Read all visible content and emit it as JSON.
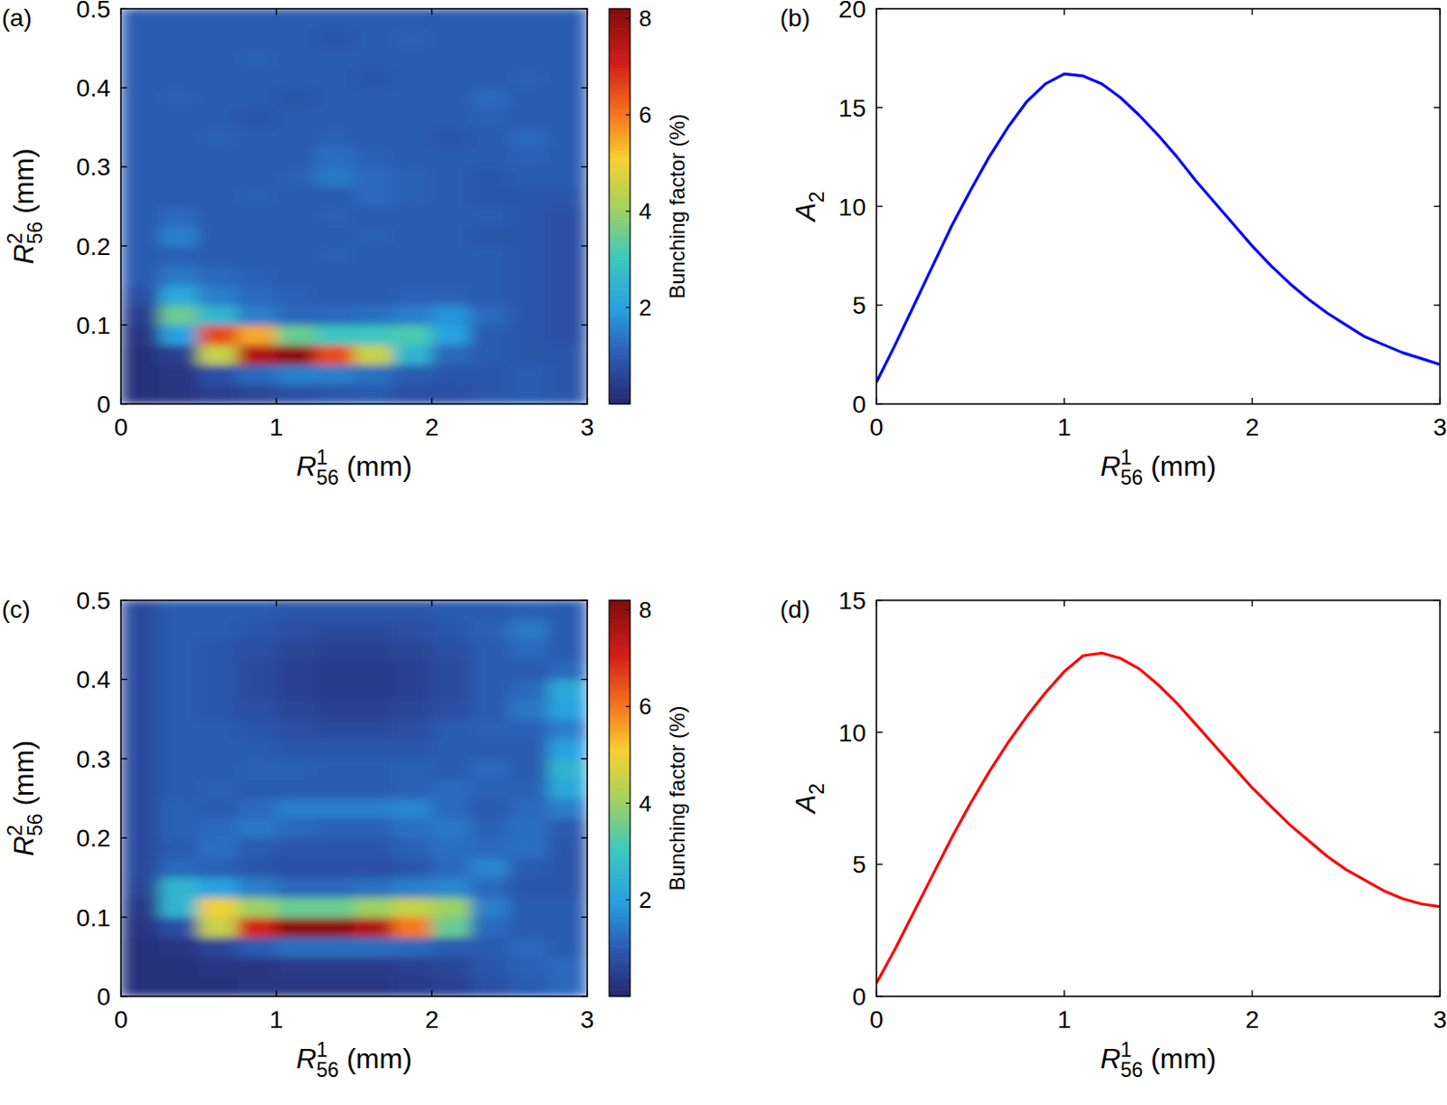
{
  "chart_data": [
    {
      "type": "heatmap",
      "panel_label": "(a)",
      "xlabel": {
        "base": "R",
        "sup": "1",
        "sub": "56",
        "rest": " (mm)"
      },
      "ylabel": {
        "base": "R",
        "sup": "2",
        "sub": "56",
        "rest": " (mm)"
      },
      "xlim": [
        0,
        3
      ],
      "ylim": [
        0,
        0.5
      ],
      "xticks": [
        0,
        1,
        2,
        3
      ],
      "yticks": [
        0,
        0.1,
        0.2,
        0.3,
        0.4,
        0.5
      ],
      "x": [
        0.125,
        0.375,
        0.625,
        0.875,
        1.125,
        1.375,
        1.625,
        1.875,
        2.125,
        2.375,
        2.625,
        2.875
      ],
      "y": [
        0.0125,
        0.0375,
        0.0625,
        0.0875,
        0.1125,
        0.1375,
        0.1625,
        0.1875,
        0.2125,
        0.2375,
        0.2625,
        0.2875,
        0.3125,
        0.3375,
        0.3625,
        0.3875,
        0.4125,
        0.4375,
        0.4625,
        0.4875
      ],
      "z": [
        [
          0.2,
          0.3,
          0.5,
          0.6,
          0.8,
          0.9,
          1,
          0.8,
          0.8,
          0.9,
          1,
          0.9
        ],
        [
          0.2,
          0.3,
          0.8,
          1.2,
          1.5,
          1.5,
          1.3,
          1.0,
          0.9,
          0.9,
          1,
          0.9
        ],
        [
          0.2,
          0.5,
          4.5,
          7.5,
          8.0,
          6.5,
          4.5,
          2.5,
          1.2,
          1,
          0.9,
          0.9
        ],
        [
          0.3,
          2.0,
          6.5,
          5.5,
          3.5,
          3.0,
          3.0,
          3.2,
          2.0,
          1,
          0.9,
          0.8
        ],
        [
          0.5,
          3.5,
          2.5,
          1.5,
          1.2,
          1.2,
          1.3,
          1.5,
          1.8,
          1.2,
          0.9,
          0.8
        ],
        [
          0.8,
          2.2,
          1.5,
          1.2,
          1.1,
          1,
          1,
          1.1,
          1.1,
          1,
          0.9,
          0.8
        ],
        [
          1,
          1.4,
          1.2,
          1.1,
          1,
          1,
          1,
          1,
          1,
          1,
          0.9,
          0.8
        ],
        [
          1,
          1.1,
          1,
          1,
          1,
          1.1,
          1,
          1,
          1,
          1,
          0.9,
          0.8
        ],
        [
          1,
          1.5,
          1,
          1,
          1,
          1,
          1.1,
          1,
          1,
          0.9,
          0.9,
          0.8
        ],
        [
          1,
          1.2,
          1,
          1,
          1,
          1.1,
          1,
          1,
          1,
          1,
          0.9,
          0.8
        ],
        [
          1,
          1,
          1,
          1.1,
          1,
          1,
          1.2,
          1.1,
          1,
          0.9,
          0.9,
          0.9
        ],
        [
          1,
          1,
          1,
          1,
          1.1,
          1.4,
          1.2,
          1.1,
          1,
          0.9,
          1,
          1
        ],
        [
          1,
          1,
          1,
          1,
          1,
          1.3,
          1.1,
          1,
          1,
          1,
          1.1,
          1
        ],
        [
          1,
          1,
          1.1,
          1,
          1,
          1.1,
          1,
          1,
          0.9,
          1,
          1.2,
          1
        ],
        [
          1,
          1,
          1,
          0.9,
          1,
          1,
          1,
          1,
          1,
          1.1,
          1,
          1
        ],
        [
          1,
          1.1,
          1,
          1,
          0.9,
          1,
          1,
          1,
          1,
          1.2,
          1,
          1
        ],
        [
          1,
          1,
          1,
          1,
          1,
          1,
          0.9,
          1,
          1,
          1,
          1.1,
          1
        ],
        [
          1,
          1,
          1,
          1.1,
          1,
          1,
          1,
          1,
          1,
          1,
          1,
          1
        ],
        [
          1,
          1,
          1,
          1,
          1,
          0.9,
          1,
          1.1,
          1,
          1,
          1,
          1
        ],
        [
          1,
          1,
          1,
          1,
          1,
          1,
          1,
          1,
          1,
          1,
          1,
          1
        ]
      ],
      "zlim": [
        0,
        8.2
      ],
      "zticks": [
        2,
        4,
        6,
        8
      ],
      "colorbar_label": "Bunching factor (%)"
    },
    {
      "type": "line",
      "panel_label": "(b)",
      "xlabel": {
        "base": "R",
        "sup": "1",
        "sub": "56",
        "rest": " (mm)"
      },
      "ylabel": {
        "base": "A",
        "sub": "2"
      },
      "xlim": [
        0,
        3
      ],
      "ylim": [
        0,
        20
      ],
      "xticks": [
        0,
        1,
        2,
        3
      ],
      "yticks": [
        0,
        5,
        10,
        15,
        20
      ],
      "color": "#0000ff",
      "x": [
        0,
        0.1,
        0.2,
        0.3,
        0.4,
        0.5,
        0.6,
        0.7,
        0.8,
        0.9,
        1.0,
        1.1,
        1.2,
        1.3,
        1.4,
        1.5,
        1.6,
        1.7,
        1.8,
        1.9,
        2.0,
        2.1,
        2.2,
        2.3,
        2.4,
        2.5,
        2.6,
        2.7,
        2.8,
        2.9,
        3.0
      ],
      "values": [
        1.1,
        3.0,
        5.0,
        7.0,
        9.0,
        10.8,
        12.5,
        14.0,
        15.3,
        16.2,
        16.7,
        16.6,
        16.2,
        15.5,
        14.6,
        13.6,
        12.5,
        11.3,
        10.2,
        9.1,
        8.0,
        7.0,
        6.1,
        5.3,
        4.6,
        4.0,
        3.4,
        3.0,
        2.6,
        2.3,
        2.0
      ]
    },
    {
      "type": "heatmap",
      "panel_label": "(c)",
      "xlabel": {
        "base": "R",
        "sup": "1",
        "sub": "56",
        "rest": " (mm)"
      },
      "ylabel": {
        "base": "R",
        "sup": "2",
        "sub": "56",
        "rest": " (mm)"
      },
      "xlim": [
        0,
        3
      ],
      "ylim": [
        0,
        0.5
      ],
      "xticks": [
        0,
        1,
        2,
        3
      ],
      "yticks": [
        0,
        0.1,
        0.2,
        0.3,
        0.4,
        0.5
      ],
      "x": [
        0.125,
        0.375,
        0.625,
        0.875,
        1.125,
        1.375,
        1.625,
        1.875,
        2.125,
        2.375,
        2.625,
        2.875
      ],
      "y": [
        0.0125,
        0.0375,
        0.0625,
        0.0875,
        0.1125,
        0.1375,
        0.1625,
        0.1875,
        0.2125,
        0.2375,
        0.2625,
        0.2875,
        0.3125,
        0.3375,
        0.3625,
        0.3875,
        0.4125,
        0.4375,
        0.4625,
        0.4875
      ],
      "z": [
        [
          0.2,
          0.2,
          0.2,
          0.3,
          0.3,
          0.3,
          0.3,
          0.4,
          0.5,
          0.8,
          1,
          1.2
        ],
        [
          0.2,
          0.2,
          0.3,
          0.3,
          0.4,
          0.4,
          0.4,
          0.5,
          0.6,
          0.9,
          1.1,
          1.2
        ],
        [
          0.2,
          0.3,
          0.6,
          1,
          1.3,
          1.3,
          1.3,
          1.2,
          1.0,
          1.0,
          1.2,
          1.0
        ],
        [
          0.3,
          0.8,
          4.5,
          7,
          8,
          8,
          7.5,
          6,
          3.5,
          1.2,
          1,
          1
        ],
        [
          0.4,
          2.5,
          5,
          4,
          3.5,
          3.5,
          4,
          4.5,
          4,
          1.5,
          1,
          1
        ],
        [
          0.6,
          2.5,
          2,
          1.5,
          1.2,
          1.2,
          1.3,
          1.5,
          1.6,
          1.2,
          0.9,
          0.9
        ],
        [
          0.7,
          1.2,
          1.1,
          0.9,
          0.8,
          0.8,
          0.8,
          0.9,
          1.2,
          1.6,
          1,
          0.9
        ],
        [
          0.7,
          1.0,
          1.3,
          1.0,
          0.9,
          0.9,
          0.9,
          1.1,
          1.3,
          1.2,
          1.3,
          0.9
        ],
        [
          0.7,
          1.1,
          1.2,
          1.4,
          1.2,
          1.1,
          1.1,
          1.3,
          1.4,
          1.1,
          1.3,
          1.0
        ],
        [
          0.7,
          1.1,
          1.0,
          1.2,
          1.5,
          1.5,
          1.5,
          1.6,
          1.2,
          1.0,
          1.2,
          1.5
        ],
        [
          0.7,
          1.0,
          1.1,
          1.0,
          1.0,
          1.0,
          1.0,
          1.1,
          1.2,
          1.1,
          1.1,
          2.2
        ],
        [
          0.7,
          1.0,
          1.0,
          1.1,
          1.1,
          1.0,
          1.0,
          1.1,
          1.0,
          1.2,
          1.0,
          2.5
        ],
        [
          0.7,
          1.0,
          1.0,
          1.0,
          0.9,
          0.9,
          0.9,
          0.9,
          1.0,
          1.0,
          1.0,
          2.0
        ],
        [
          0.7,
          1.0,
          1.0,
          0.9,
          0.8,
          0.7,
          0.7,
          0.8,
          1.0,
          1.1,
          1.1,
          1.5
        ],
        [
          0.7,
          1.0,
          0.9,
          0.8,
          0.6,
          0.5,
          0.5,
          0.6,
          0.8,
          1.0,
          1.4,
          2.0
        ],
        [
          0.7,
          1.0,
          0.9,
          0.7,
          0.5,
          0.4,
          0.4,
          0.5,
          0.7,
          1.0,
          1.2,
          2.2
        ],
        [
          0.7,
          1.0,
          0.9,
          0.7,
          0.5,
          0.4,
          0.4,
          0.5,
          0.7,
          1.0,
          1.0,
          1.2
        ],
        [
          0.7,
          1.0,
          0.9,
          0.8,
          0.6,
          0.5,
          0.5,
          0.6,
          0.8,
          1.0,
          1.2,
          1.0
        ],
        [
          0.7,
          1.0,
          1.0,
          0.9,
          0.8,
          0.7,
          0.7,
          0.8,
          0.9,
          1.1,
          1.4,
          1.0
        ],
        [
          0.7,
          1.0,
          1.0,
          1.0,
          0.9,
          0.9,
          0.9,
          0.9,
          1.0,
          1.0,
          1.1,
          1.0
        ]
      ],
      "zlim": [
        0,
        8.2
      ],
      "zticks": [
        2,
        4,
        6,
        8
      ],
      "colorbar_label": "Bunching factor (%)"
    },
    {
      "type": "line",
      "panel_label": "(d)",
      "xlabel": {
        "base": "R",
        "sup": "1",
        "sub": "56",
        "rest": " (mm)"
      },
      "ylabel": {
        "base": "A",
        "sub": "2"
      },
      "xlim": [
        0,
        3
      ],
      "ylim": [
        0,
        15
      ],
      "xticks": [
        0,
        1,
        2,
        3
      ],
      "yticks": [
        0,
        5,
        10,
        15
      ],
      "color": "#ff0000",
      "x": [
        0,
        0.1,
        0.2,
        0.3,
        0.4,
        0.5,
        0.6,
        0.7,
        0.8,
        0.9,
        1.0,
        1.1,
        1.2,
        1.3,
        1.4,
        1.5,
        1.6,
        1.7,
        1.8,
        1.9,
        2.0,
        2.1,
        2.2,
        2.3,
        2.4,
        2.5,
        2.6,
        2.7,
        2.8,
        2.9,
        3.0
      ],
      "values": [
        0.5,
        1.8,
        3.2,
        4.6,
        6.0,
        7.3,
        8.5,
        9.6,
        10.6,
        11.5,
        12.3,
        12.9,
        13.0,
        12.8,
        12.4,
        11.8,
        11.1,
        10.3,
        9.5,
        8.7,
        7.9,
        7.2,
        6.5,
        5.9,
        5.3,
        4.8,
        4.4,
        4.0,
        3.7,
        3.5,
        3.4
      ]
    }
  ]
}
